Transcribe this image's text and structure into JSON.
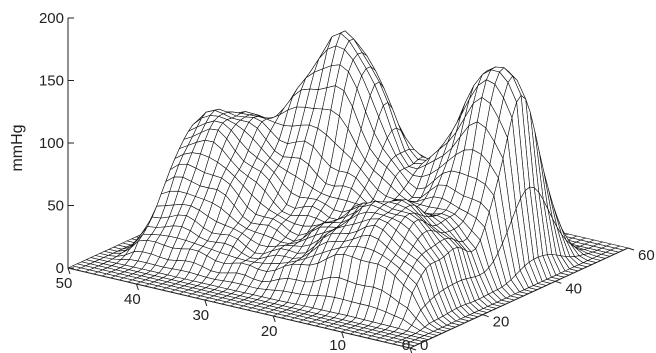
{
  "chart_data": {
    "type": "surface",
    "title": "",
    "zlabel": "mmHg",
    "zlim": [
      0,
      200
    ],
    "z_ticks": [
      "0",
      "50",
      "100",
      "150",
      "200"
    ],
    "x_ticks": [
      "50",
      "40",
      "30",
      "20",
      "10",
      "0"
    ],
    "y_ticks": [
      "0",
      "20",
      "40",
      "60"
    ],
    "xlim": [
      0,
      50
    ],
    "ylim": [
      0,
      60
    ],
    "grid": "mesh",
    "peaks": [
      {
        "x": 28,
        "y": 36,
        "z": 163
      },
      {
        "x": 8,
        "y": 40,
        "z": 183
      },
      {
        "x": 42,
        "y": 26,
        "z": 105
      },
      {
        "x": 12,
        "y": 18,
        "z": 70
      }
    ]
  }
}
